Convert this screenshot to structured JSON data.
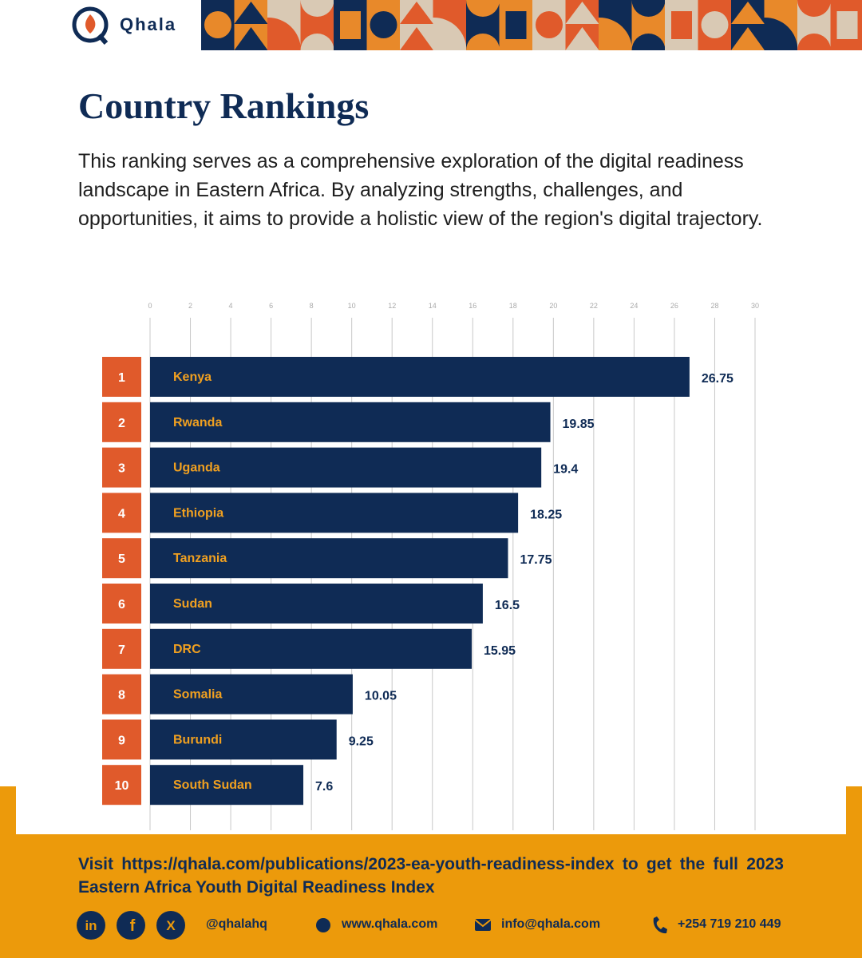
{
  "header": {
    "brand": "Qhala"
  },
  "chart_data": {
    "type": "bar",
    "orientation": "horizontal",
    "title": "Country Rankings",
    "subtitle": "This ranking serves as a comprehensive exploration of the digital readiness landscape in Eastern Africa. By analyzing strengths, challenges, and opportunities, it aims to provide a holistic view of the region's digital trajectory.",
    "ranks": [
      1,
      2,
      3,
      4,
      5,
      6,
      7,
      8,
      9,
      10
    ],
    "categories": [
      "Kenya",
      "Rwanda",
      "Uganda",
      "Ethiopia",
      "Tanzania",
      "Sudan",
      "DRC",
      "Somalia",
      "Burundi",
      "South Sudan"
    ],
    "values": [
      26.75,
      19.85,
      19.4,
      18.25,
      17.75,
      16.5,
      15.95,
      10.05,
      9.25,
      7.6
    ],
    "color": "#0f2b55",
    "label_color": "#f0a020",
    "rank_color": "#e05a2b",
    "xlim": [
      0,
      30
    ],
    "xticks": [
      0,
      2,
      4,
      6,
      8,
      10,
      12,
      14,
      16,
      18,
      20,
      22,
      24,
      26,
      28,
      30
    ],
    "grid": true
  },
  "footer": {
    "text": "Visit https://qhala.com/publications/2023-ea-youth-readiness-index to get the full 2023 Eastern Africa Youth Digital Readiness Index",
    "social_handle": "@qhalahq",
    "website": "www.qhala.com",
    "email": "info@qhala.com",
    "phone": "+254 719 210 449"
  }
}
